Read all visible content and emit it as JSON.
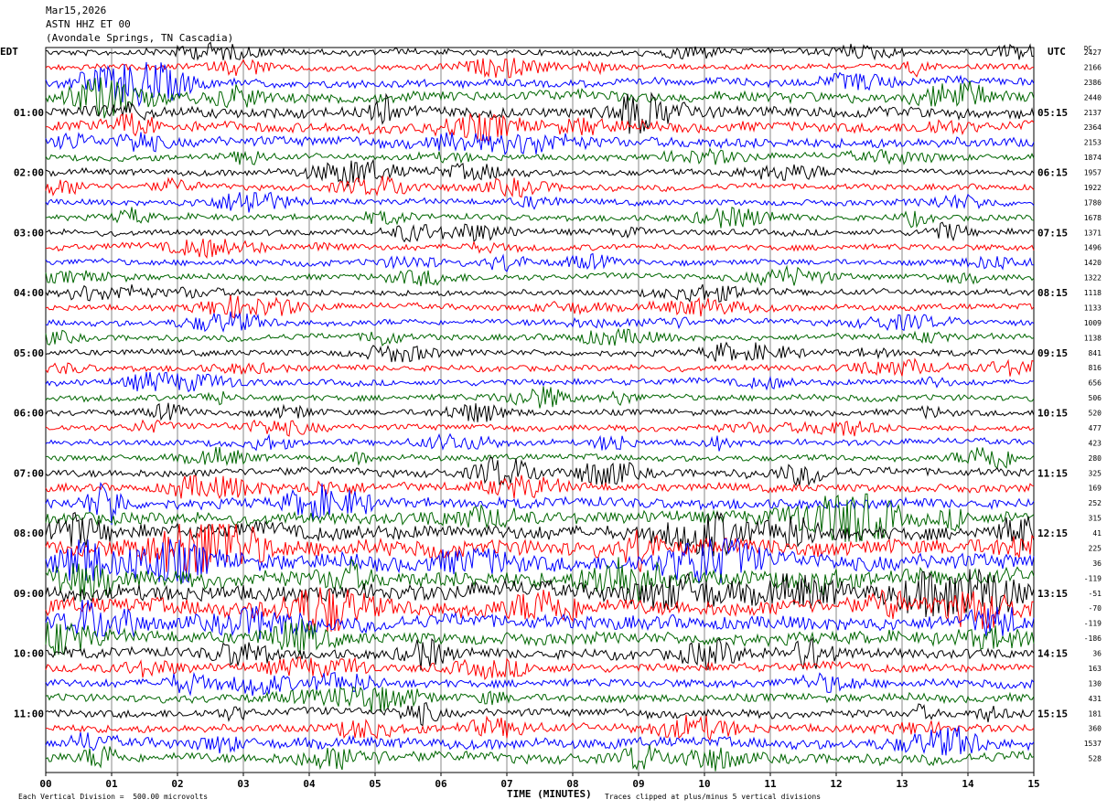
{
  "header": {
    "date": "Mar15,2026",
    "station": "ASTN HHZ ET 00",
    "location": "(Avondale Springs, TN Cascadia)"
  },
  "left_axis_title": "EDT",
  "right_axis_title": "UTC",
  "dc_title": "DC",
  "footer": {
    "scale_note": "Each Vertical Division =  500.00 microvolts",
    "xlabel": "TIME (MINUTES)",
    "clip_note": "Traces clipped at plus/minus 5 vertical divisions"
  },
  "colors": [
    "#000000",
    "#ff0000",
    "#0000ff",
    "#006600"
  ],
  "chart_data": {
    "type": "line",
    "title": "ASTN HHZ ET 00",
    "xlabel": "TIME (MINUTES)",
    "xlim": [
      0,
      15
    ],
    "x_ticks": [
      "00",
      "01",
      "02",
      "03",
      "04",
      "05",
      "06",
      "07",
      "08",
      "09",
      "10",
      "11",
      "12",
      "13",
      "14",
      "15"
    ],
    "left_labels": [
      "01:00",
      "02:00",
      "03:00",
      "04:00",
      "05:00",
      "06:00",
      "07:00",
      "08:00",
      "09:00",
      "10:00",
      "11:00"
    ],
    "right_labels": [
      "05:15",
      "06:15",
      "07:15",
      "08:15",
      "09:15",
      "10:15",
      "11:15",
      "12:15",
      "13:15",
      "14:15",
      "15:15"
    ],
    "dc_offsets": [
      2427,
      2166,
      2386,
      2440,
      2137,
      2364,
      2153,
      1874,
      1957,
      1922,
      1780,
      1678,
      1371,
      1496,
      1420,
      1322,
      1118,
      1133,
      1009,
      1138,
      841,
      816,
      656,
      506,
      520,
      477,
      423,
      280,
      325,
      169,
      252,
      315,
      41,
      225,
      36,
      -119,
      -51,
      -70,
      -119,
      -186,
      36,
      163,
      130,
      431,
      181,
      360,
      1537,
      528
    ],
    "trace_amplitude": [
      3,
      3,
      4,
      5,
      5,
      5,
      5,
      3,
      3,
      3,
      3,
      3,
      3,
      3,
      3,
      3,
      3,
      3,
      3,
      3,
      3,
      3,
      3,
      3,
      3,
      3,
      3,
      3,
      4,
      4,
      5,
      6,
      7,
      8,
      8,
      8,
      8,
      8,
      7,
      6,
      5,
      4,
      4,
      4,
      4,
      4,
      5,
      5
    ]
  }
}
